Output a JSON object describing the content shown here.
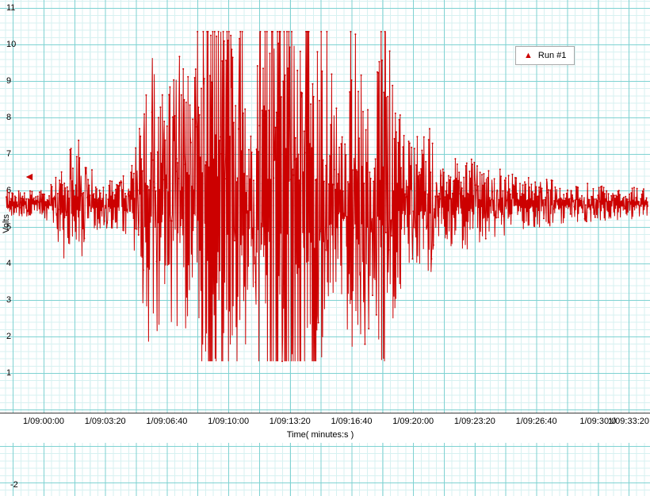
{
  "legend": {
    "marker": "▲",
    "label": "Run #1"
  },
  "cursor": {
    "symbol": "◄"
  },
  "y_axis": {
    "title": "Volts",
    "ticks": [
      "11",
      "10",
      "9",
      "8",
      "7",
      "6",
      "5",
      "4",
      "3",
      "2",
      "1"
    ]
  },
  "x_axis": {
    "title": "Time( minutes:s )",
    "ticks": [
      "1/09:00:00",
      "1/09:03:20",
      "1/09:06:40",
      "1/09:10:00",
      "1/09:13:20",
      "1/09:16:40",
      "1/09:20:00",
      "1/09:23:20",
      "1/09:26:40",
      "1/09:30:0",
      "1/09:33:20"
    ]
  },
  "bottom_chart": {
    "tick": "-2"
  },
  "colors": {
    "signal": "#cc0000",
    "grid_minor": "#d7f1f1",
    "grid_major": "#7fd2d2",
    "axis_line": "#3a3a3a",
    "text": "#000000"
  },
  "chart_data": {
    "type": "line",
    "series_name": "Run #1",
    "xlabel": "Time( minutes:s )",
    "ylabel": "Volts",
    "x_tick_labels": [
      "1/09:00:00",
      "1/09:03:20",
      "1/09:06:40",
      "1/09:10:00",
      "1/09:13:20",
      "1/09:16:40",
      "1/09:20:00",
      "1/09:23:20",
      "1/09:26:40",
      "1/09:30:0",
      "1/09:33:20"
    ],
    "x_tick_interval_seconds": 200,
    "y_ticks": [
      11,
      10,
      9,
      8,
      7,
      6,
      5,
      4,
      3,
      2,
      1
    ],
    "ylim": [
      -0.1,
      11.2
    ],
    "baseline": 5.65,
    "clip_low": 1.32,
    "clip_high": 10.35,
    "noise_seed": 42,
    "envelope_units": "volts deviation from baseline vs fraction of visible time span",
    "envelope": [
      [
        0.0,
        0.35
      ],
      [
        0.058,
        0.4
      ],
      [
        0.077,
        0.7
      ],
      [
        0.086,
        2.4
      ],
      [
        0.095,
        1.4
      ],
      [
        0.114,
        1.8
      ],
      [
        0.125,
        1.0
      ],
      [
        0.151,
        0.75
      ],
      [
        0.175,
        0.75
      ],
      [
        0.194,
        1.1
      ],
      [
        0.206,
        2.0
      ],
      [
        0.219,
        3.8
      ],
      [
        0.231,
        4.2
      ],
      [
        0.243,
        3.2
      ],
      [
        0.256,
        3.8
      ],
      [
        0.268,
        4.2
      ],
      [
        0.28,
        3.4
      ],
      [
        0.293,
        3.8
      ],
      [
        0.301,
        6.0
      ],
      [
        0.311,
        7.2
      ],
      [
        0.367,
        7.2
      ],
      [
        0.375,
        2.6
      ],
      [
        0.388,
        2.6
      ],
      [
        0.398,
        7.2
      ],
      [
        0.404,
        7.4
      ],
      [
        0.499,
        7.4
      ],
      [
        0.506,
        3.6
      ],
      [
        0.521,
        3.0
      ],
      [
        0.533,
        4.0
      ],
      [
        0.543,
        7.0
      ],
      [
        0.556,
        7.0
      ],
      [
        0.564,
        3.6
      ],
      [
        0.573,
        3.0
      ],
      [
        0.583,
        5.8
      ],
      [
        0.593,
        5.6
      ],
      [
        0.601,
        3.4
      ],
      [
        0.614,
        2.4
      ],
      [
        0.626,
        1.8
      ],
      [
        0.638,
        2.1
      ],
      [
        0.66,
        2.3
      ],
      [
        0.675,
        1.5
      ],
      [
        0.694,
        1.2
      ],
      [
        0.719,
        1.3
      ],
      [
        0.743,
        1.0
      ],
      [
        0.768,
        0.95
      ],
      [
        0.793,
        0.8
      ],
      [
        0.83,
        0.68
      ],
      [
        0.867,
        0.62
      ],
      [
        0.904,
        0.55
      ],
      [
        0.941,
        0.48
      ],
      [
        0.99,
        0.42
      ],
      [
        1.0,
        0.4
      ]
    ]
  }
}
